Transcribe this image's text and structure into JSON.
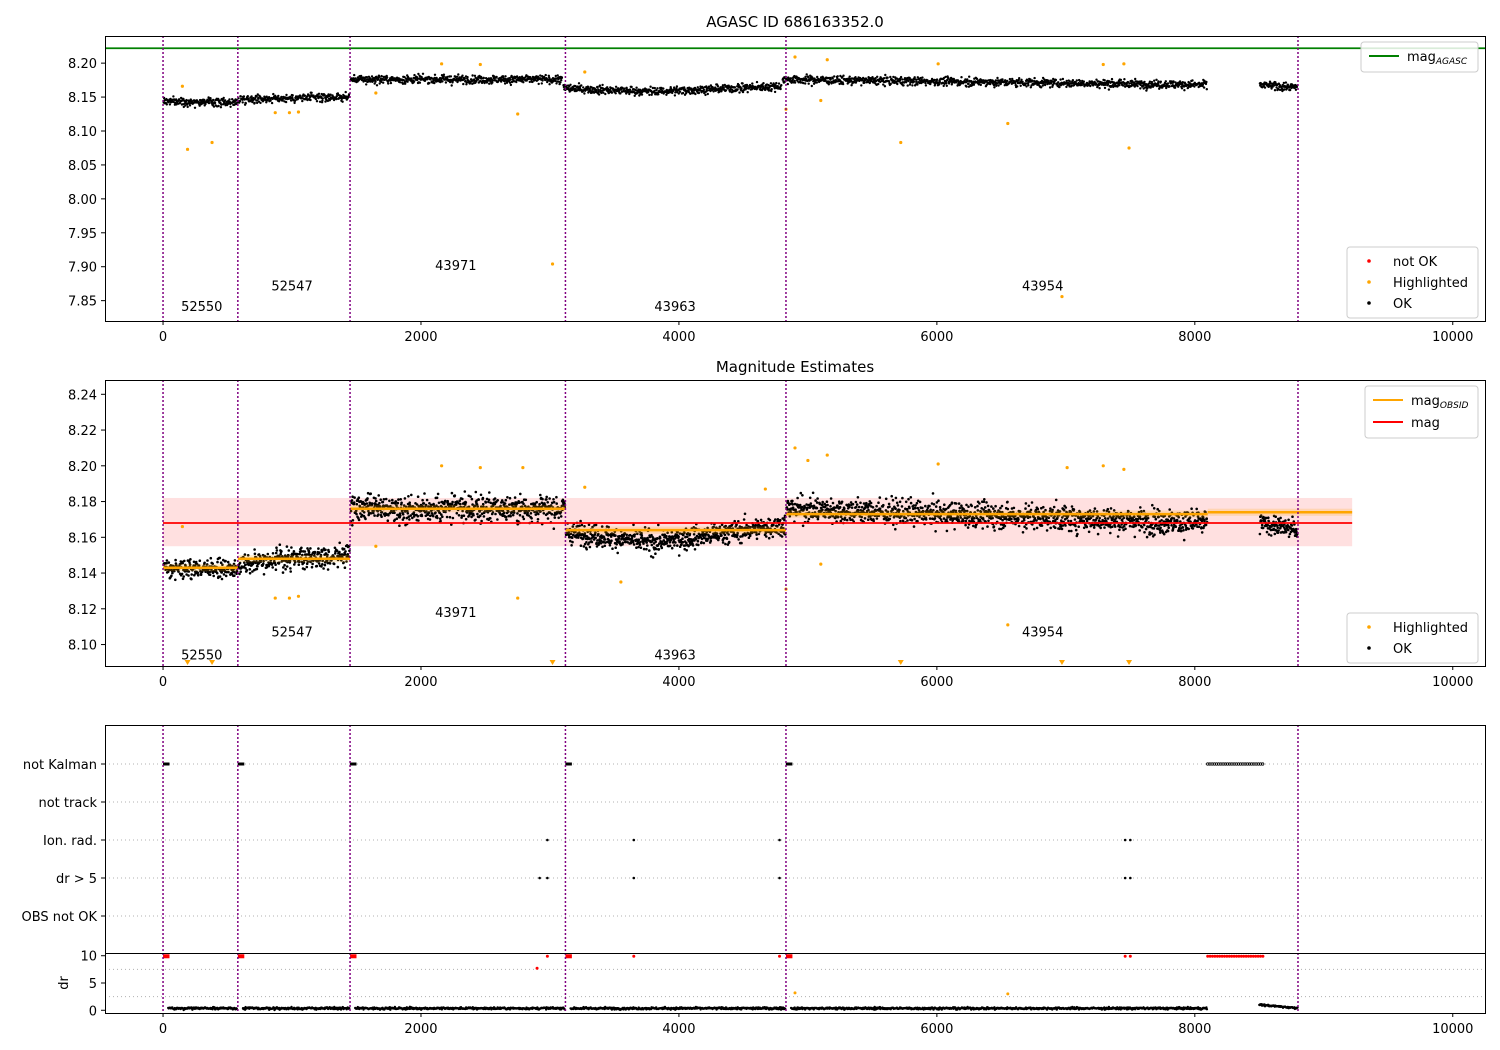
{
  "chart_data": [
    {
      "type": "scatter",
      "title": "AGASC ID 686163352.0",
      "xlim": [
        -450,
        10250
      ],
      "ylim": [
        7.82,
        8.24
      ],
      "x_ticks": [
        0,
        2000,
        4000,
        6000,
        8000,
        10000
      ],
      "y_ticks": [
        7.85,
        7.9,
        7.95,
        8.0,
        8.05,
        8.1,
        8.15,
        8.2
      ],
      "reference_line": {
        "name": "mag_AGASC",
        "value": 8.222,
        "color": "#008000"
      },
      "legend_top": {
        "position": "top-right",
        "entries": [
          {
            "label": "mag",
            "sub": "AGASC",
            "color": "#008000",
            "kind": "line"
          }
        ]
      },
      "legend_bottom": {
        "position": "lower-right",
        "entries": [
          {
            "label": "not OK",
            "color": "#ff0000",
            "kind": "dot"
          },
          {
            "label": "Highlighted",
            "color": "#ffa500",
            "kind": "dot"
          },
          {
            "label": "OK",
            "color": "#000000",
            "kind": "dot"
          }
        ]
      },
      "ok_segments": [
        {
          "x": [
            0,
            580
          ],
          "levels": [
            [
              0,
              8.144
            ],
            [
              580,
              8.142
            ]
          ],
          "noise": 0.006
        },
        {
          "x": [
            580,
            1450
          ],
          "levels": [
            [
              580,
              8.147
            ],
            [
              1450,
              8.15
            ]
          ],
          "noise": 0.006
        },
        {
          "x": [
            1450,
            3100
          ],
          "levels": [
            [
              1450,
              8.176
            ],
            [
              3100,
              8.176
            ]
          ],
          "noise": 0.006
        },
        {
          "x": [
            3100,
            4800
          ],
          "levels": [
            [
              3100,
              8.163
            ],
            [
              3800,
              8.158
            ],
            [
              4800,
              8.166
            ]
          ],
          "noise": 0.006
        },
        {
          "x": [
            4800,
            8100
          ],
          "levels": [
            [
              4800,
              8.176
            ],
            [
              8100,
              8.168
            ]
          ],
          "noise": 0.006
        },
        {
          "x": [
            8100,
            8500
          ],
          "levels": [],
          "noise": 0
        },
        {
          "x": [
            8500,
            8800
          ],
          "levels": [
            [
              8500,
              8.168
            ],
            [
              8800,
              8.164
            ]
          ],
          "noise": 0.006
        }
      ],
      "highlighted_points": [
        [
          190,
          8.073
        ],
        [
          380,
          8.083
        ],
        [
          150,
          8.166
        ],
        [
          870,
          8.127
        ],
        [
          980,
          8.127
        ],
        [
          1050,
          8.128
        ],
        [
          1650,
          8.156
        ],
        [
          2160,
          8.199
        ],
        [
          2460,
          8.198
        ],
        [
          2750,
          8.125
        ],
        [
          3020,
          7.904
        ],
        [
          3270,
          8.187
        ],
        [
          4830,
          8.132
        ],
        [
          4900,
          8.209
        ],
        [
          5100,
          8.145
        ],
        [
          5150,
          8.205
        ],
        [
          5720,
          8.083
        ],
        [
          6010,
          8.199
        ],
        [
          6550,
          8.111
        ],
        [
          6970,
          7.856
        ],
        [
          7290,
          8.198
        ],
        [
          7450,
          8.199
        ],
        [
          7490,
          8.075
        ]
      ],
      "obsid_boundaries": [
        0,
        580,
        1450,
        3120,
        4830,
        8800
      ],
      "obsid_labels": [
        {
          "text": "52550",
          "x": 140,
          "y": 7.835
        },
        {
          "text": "52547",
          "x": 840,
          "y": 7.865
        },
        {
          "text": "43971",
          "x": 2110,
          "y": 7.895
        },
        {
          "text": "43963",
          "x": 3810,
          "y": 7.835
        },
        {
          "text": "43954",
          "x": 6660,
          "y": 7.865
        }
      ]
    },
    {
      "type": "scatter",
      "title": "Magnitude Estimates",
      "xlim": [
        -450,
        10250
      ],
      "ylim": [
        8.088,
        8.248
      ],
      "x_ticks": [
        0,
        2000,
        4000,
        6000,
        8000,
        10000
      ],
      "y_ticks": [
        8.1,
        8.12,
        8.14,
        8.16,
        8.18,
        8.2,
        8.22,
        8.24
      ],
      "mag": {
        "name": "mag",
        "value": 8.168,
        "band": [
          8.155,
          8.182
        ],
        "x_range": [
          0,
          9220
        ],
        "color": "#ff0000"
      },
      "mag_obsid": [
        {
          "x": [
            0,
            580
          ],
          "value": 8.143
        },
        {
          "x": [
            580,
            1450
          ],
          "value": 8.148
        },
        {
          "x": [
            1450,
            3120
          ],
          "value": 8.176
        },
        {
          "x": [
            3120,
            4830
          ],
          "value": 8.164
        },
        {
          "x": [
            4830,
            8100
          ],
          "value": 8.173
        },
        {
          "x": [
            8100,
            9220
          ],
          "value": 8.174
        }
      ],
      "ok_segments": [
        {
          "x": [
            0,
            580
          ],
          "levels": [
            [
              0,
              8.143
            ],
            [
              580,
              8.142
            ]
          ],
          "noise": 0.005
        },
        {
          "x": [
            580,
            1450
          ],
          "levels": [
            [
              580,
              8.146
            ],
            [
              1450,
              8.15
            ]
          ],
          "noise": 0.006
        },
        {
          "x": [
            1450,
            3120
          ],
          "levels": [
            [
              1450,
              8.176
            ],
            [
              3120,
              8.176
            ]
          ],
          "noise": 0.007
        },
        {
          "x": [
            3120,
            4830
          ],
          "levels": [
            [
              3120,
              8.163
            ],
            [
              3800,
              8.157
            ],
            [
              4830,
              8.167
            ]
          ],
          "noise": 0.006
        },
        {
          "x": [
            4830,
            8100
          ],
          "levels": [
            [
              4830,
              8.176
            ],
            [
              8100,
              8.168
            ]
          ],
          "noise": 0.007
        },
        {
          "x": [
            8100,
            8500
          ],
          "levels": [],
          "noise": 0
        },
        {
          "x": [
            8500,
            8800
          ],
          "levels": [
            [
              8500,
              8.168
            ],
            [
              8800,
              8.164
            ]
          ],
          "noise": 0.005
        }
      ],
      "highlighted_points": [
        [
          150,
          8.166
        ],
        [
          870,
          8.126
        ],
        [
          980,
          8.126
        ],
        [
          1050,
          8.127
        ],
        [
          1650,
          8.155
        ],
        [
          2160,
          8.2
        ],
        [
          2460,
          8.199
        ],
        [
          2750,
          8.126
        ],
        [
          2790,
          8.199
        ],
        [
          3270,
          8.188
        ],
        [
          3550,
          8.135
        ],
        [
          4670,
          8.187
        ],
        [
          4830,
          8.131
        ],
        [
          4900,
          8.21
        ],
        [
          5000,
          8.203
        ],
        [
          5100,
          8.145
        ],
        [
          5150,
          8.206
        ],
        [
          6010,
          8.201
        ],
        [
          6550,
          8.111
        ],
        [
          7010,
          8.199
        ],
        [
          7290,
          8.2
        ],
        [
          7450,
          8.198
        ]
      ],
      "off_scale_markers": [
        190,
        380,
        3020,
        5720,
        6970,
        7490
      ],
      "legend_top": {
        "position": "top-right",
        "entries": [
          {
            "label": "mag",
            "sub": "OBSID",
            "color": "#ffa500",
            "kind": "line"
          },
          {
            "label": "mag",
            "sub": "",
            "color": "#ff0000",
            "kind": "line"
          }
        ]
      },
      "legend_bottom": {
        "position": "lower-right",
        "entries": [
          {
            "label": "Highlighted",
            "color": "#ffa500",
            "kind": "dot"
          },
          {
            "label": "OK",
            "color": "#000000",
            "kind": "dot"
          }
        ]
      },
      "obsid_labels": [
        {
          "text": "52550",
          "x": 140,
          "y": 8.0915
        },
        {
          "text": "52547",
          "x": 840,
          "y": 8.1045
        },
        {
          "text": "43971",
          "x": 2110,
          "y": 8.1155
        },
        {
          "text": "43963",
          "x": 3810,
          "y": 8.0915
        },
        {
          "text": "43954",
          "x": 6660,
          "y": 8.1045
        }
      ]
    },
    {
      "type": "scatter",
      "title": "",
      "xlim": [
        -450,
        10250
      ],
      "categories": [
        "not Kalman",
        "not track",
        "Ion. rad.",
        "dr > 5",
        "OBS not OK"
      ],
      "flag_ranges": [
        {
          "row": "not Kalman",
          "ranges": [
            [
              0,
              50
            ],
            [
              580,
              630
            ],
            [
              1450,
              1500
            ],
            [
              3120,
              3170
            ],
            [
              4830,
              4880
            ],
            [
              8100,
              8540
            ]
          ]
        }
      ],
      "flag_points": [
        {
          "row": "Ion. rad.",
          "x": [
            2980,
            3650,
            4780,
            7460,
            7500
          ]
        },
        {
          "row": "dr > 5",
          "x": [
            2920,
            2980,
            3650,
            4780,
            7460,
            7500
          ]
        }
      ]
    },
    {
      "type": "scatter",
      "title": "",
      "ylabel": "dr",
      "xlim": [
        -450,
        10250
      ],
      "ylim": [
        -0.5,
        10.5
      ],
      "x_ticks": [
        0,
        2000,
        4000,
        6000,
        8000,
        10000
      ],
      "y_ticks": [
        0,
        5,
        10
      ],
      "ok_level": 0.35,
      "ok_x_ranges": [
        [
          0,
          580
        ],
        [
          580,
          1450
        ],
        [
          1450,
          3120
        ],
        [
          3120,
          4830
        ],
        [
          4830,
          8100
        ]
      ],
      "ok_late_range": {
        "x": [
          8500,
          8800
        ],
        "value": 1.0
      },
      "not_ok_clusters": [
        [
          0,
          50
        ],
        [
          580,
          630
        ],
        [
          1450,
          1500
        ],
        [
          3120,
          3170
        ],
        [
          4830,
          4880
        ],
        [
          8100,
          8540
        ]
      ],
      "not_ok_points": [
        [
          2900,
          7.7
        ],
        [
          2980,
          9.9
        ],
        [
          3650,
          9.9
        ],
        [
          4780,
          9.9
        ],
        [
          7460,
          9.9
        ],
        [
          7500,
          9.9
        ]
      ],
      "highlighted_points": [
        [
          4900,
          3.2
        ],
        [
          6550,
          3.0
        ]
      ],
      "obsid_boundaries": [
        0,
        580,
        1450,
        3120,
        4830,
        8800
      ]
    }
  ]
}
